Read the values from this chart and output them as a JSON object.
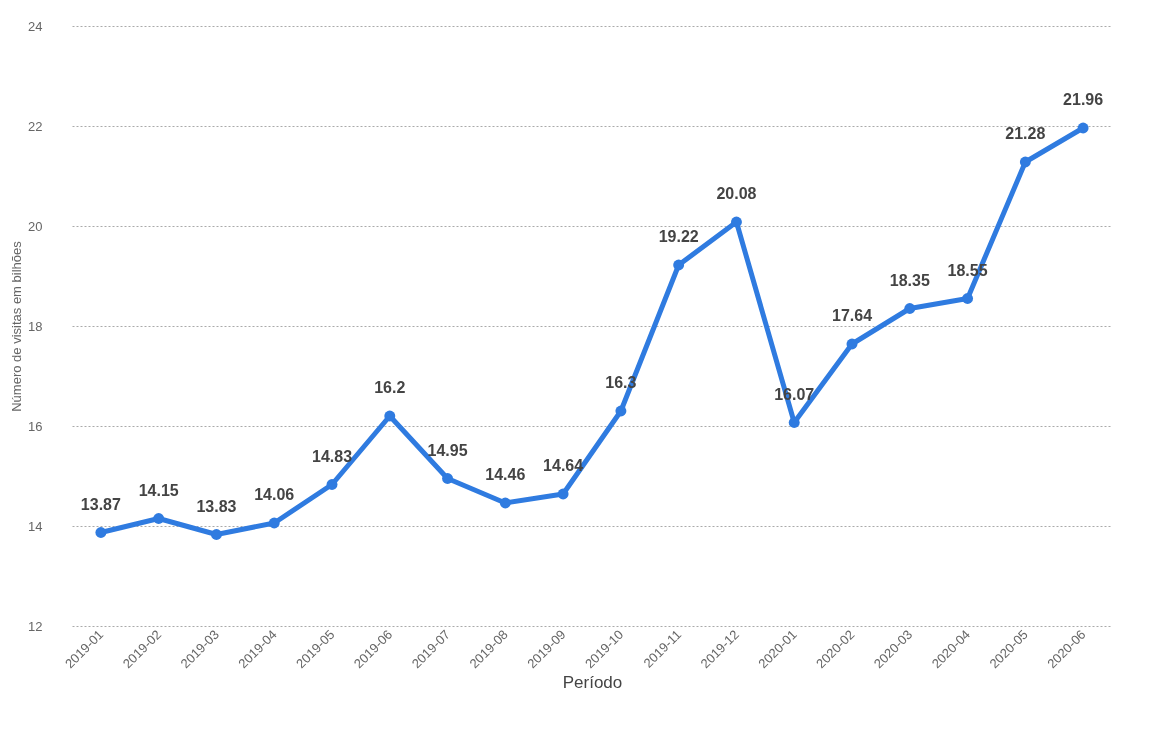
{
  "chart_data": {
    "type": "line",
    "xlabel": "Período",
    "ylabel": "Número de visitas em bilhões",
    "categories": [
      "2019-01",
      "2019-02",
      "2019-03",
      "2019-04",
      "2019-05",
      "2019-06",
      "2019-07",
      "2019-08",
      "2019-09",
      "2019-10",
      "2019-11",
      "2019-12",
      "2020-01",
      "2020-02",
      "2020-03",
      "2020-04",
      "2020-05",
      "2020-06"
    ],
    "values": [
      13.87,
      14.15,
      13.83,
      14.06,
      14.83,
      16.2,
      14.95,
      14.46,
      14.64,
      16.3,
      19.22,
      20.08,
      16.07,
      17.64,
      18.35,
      18.55,
      21.28,
      21.96
    ],
    "color": "#2f7be0",
    "ylim": [
      12,
      24
    ],
    "yticks": [
      12,
      14,
      16,
      18,
      20,
      22,
      24
    ],
    "grid": "y",
    "marker": "circle",
    "data_labels": true
  }
}
